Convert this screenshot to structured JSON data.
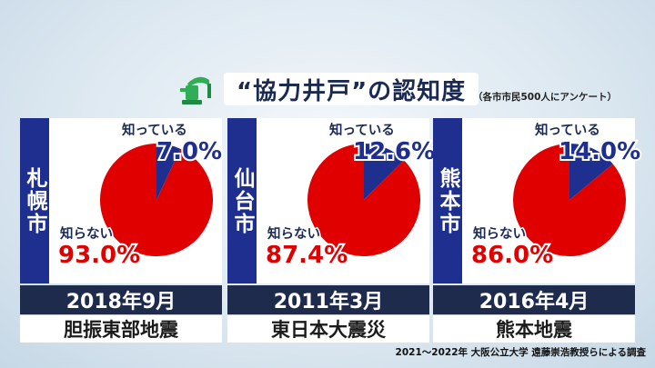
{
  "title": "“協力井戸”の認知度",
  "subtitle": "（各市市民500人にアンケート）",
  "footer": "2021～2022年 大阪公立大学 遠藤崇浩教授らによる調査",
  "colors": {
    "know": "#1e2f8f",
    "dont_know": "#e00000",
    "navy": "#1e2b4d"
  },
  "icon": "water-pump-icon",
  "chart_data": [
    {
      "type": "pie",
      "city": "札幌市",
      "labels": [
        "知っている",
        "知らない"
      ],
      "values": [
        7.0,
        93.0
      ],
      "value_labels": [
        "7.0%",
        "93.0%"
      ],
      "year": "2018年9月",
      "quake": "胆振東部地震"
    },
    {
      "type": "pie",
      "city": "仙台市",
      "labels": [
        "知っている",
        "知らない"
      ],
      "values": [
        12.6,
        87.4
      ],
      "value_labels": [
        "12.6%",
        "87.4%"
      ],
      "year": "2011年3月",
      "quake": "東日本大震災"
    },
    {
      "type": "pie",
      "city": "熊本市",
      "labels": [
        "知っている",
        "知らない"
      ],
      "values": [
        14.0,
        86.0
      ],
      "value_labels": [
        "14.0%",
        "86.0%"
      ],
      "year": "2016年4月",
      "quake": "熊本地震"
    }
  ]
}
